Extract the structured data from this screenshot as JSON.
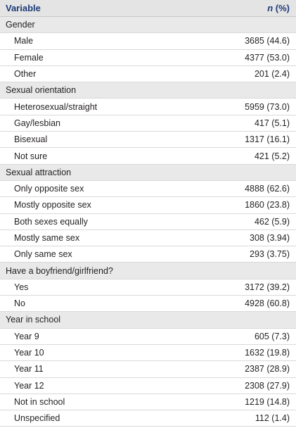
{
  "header": {
    "variable": "Variable",
    "n_italic": "n",
    "pct": " (%)"
  },
  "rows": [
    {
      "kind": "cat",
      "label": "Gender",
      "value": ""
    },
    {
      "kind": "sub",
      "label": "Male",
      "value": "3685 (44.6)"
    },
    {
      "kind": "sub",
      "label": "Female",
      "value": "4377 (53.0)"
    },
    {
      "kind": "sub",
      "label": "Other",
      "value": "201 (2.4)"
    },
    {
      "kind": "cat",
      "label": "Sexual orientation",
      "value": ""
    },
    {
      "kind": "sub",
      "label": "Heterosexual/straight",
      "value": "5959 (73.0)"
    },
    {
      "kind": "sub",
      "label": "Gay/lesbian",
      "value": "417 (5.1)"
    },
    {
      "kind": "sub",
      "label": "Bisexual",
      "value": "1317 (16.1)"
    },
    {
      "kind": "sub",
      "label": "Not sure",
      "value": "421 (5.2)"
    },
    {
      "kind": "cat",
      "label": "Sexual attraction",
      "value": ""
    },
    {
      "kind": "sub",
      "label": "Only opposite sex",
      "value": "4888 (62.6)"
    },
    {
      "kind": "sub",
      "label": "Mostly opposite sex",
      "value": "1860 (23.8)"
    },
    {
      "kind": "sub",
      "label": "Both sexes equally",
      "value": "462 (5.9)"
    },
    {
      "kind": "sub",
      "label": "Mostly same sex",
      "value": "308 (3.94)"
    },
    {
      "kind": "sub",
      "label": "Only same sex",
      "value": "293 (3.75)"
    },
    {
      "kind": "cat",
      "label": "Have a boyfriend/girlfriend?",
      "value": ""
    },
    {
      "kind": "sub",
      "label": "Yes",
      "value": "3172 (39.2)"
    },
    {
      "kind": "sub",
      "label": "No",
      "value": "4928 (60.8)"
    },
    {
      "kind": "cat",
      "label": "Year in school",
      "value": ""
    },
    {
      "kind": "sub",
      "label": "Year 9",
      "value": "605 (7.3)"
    },
    {
      "kind": "sub",
      "label": "Year 10",
      "value": "1632 (19.8)"
    },
    {
      "kind": "sub",
      "label": "Year 11",
      "value": "2387 (28.9)"
    },
    {
      "kind": "sub",
      "label": "Year 12",
      "value": "2308 (27.9)"
    },
    {
      "kind": "sub",
      "label": "Not in school",
      "value": "1219 (14.8)"
    },
    {
      "kind": "sub",
      "label": "Unspecified",
      "value": "112 (1.4)"
    }
  ]
}
